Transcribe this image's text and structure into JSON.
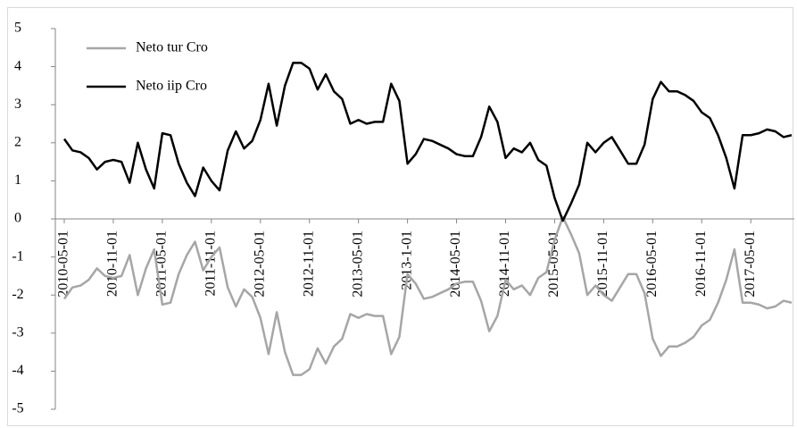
{
  "chart_data": {
    "type": "line",
    "categories": [
      "2010-05-01",
      null,
      null,
      null,
      null,
      null,
      "2010-11-01",
      null,
      null,
      null,
      null,
      null,
      "2011-05-01",
      null,
      null,
      null,
      null,
      null,
      "2011-11-01",
      null,
      null,
      null,
      null,
      null,
      "2012-05-01",
      null,
      null,
      null,
      null,
      null,
      "2012-11-01",
      null,
      null,
      null,
      null,
      null,
      "2013-05-01",
      null,
      null,
      null,
      null,
      null,
      "2013-1-01",
      null,
      null,
      null,
      null,
      null,
      "2014-05-01",
      null,
      null,
      null,
      null,
      null,
      "2014-11-01",
      null,
      null,
      null,
      null,
      null,
      "2015-05-01",
      null,
      null,
      null,
      null,
      null,
      "2015-11-01",
      null,
      null,
      null,
      null,
      null,
      "2016-05-01",
      null,
      null,
      null,
      null,
      null,
      "2016-11-01",
      null,
      null,
      null,
      null,
      null,
      "2017-05-01",
      null,
      null,
      null,
      null,
      null
    ],
    "series": [
      {
        "name": "Neto tur Cro",
        "color": "#a6a6a6",
        "values": [
          -2.1,
          -1.8,
          -1.75,
          -1.6,
          -1.3,
          -1.5,
          -1.55,
          -1.5,
          -0.95,
          -2.0,
          -1.3,
          -0.8,
          -2.25,
          -2.2,
          -1.45,
          -0.95,
          -0.6,
          -1.35,
          -1.0,
          -0.75,
          -1.8,
          -2.3,
          -1.85,
          -2.05,
          -2.6,
          -3.55,
          -2.45,
          -3.5,
          -4.1,
          -4.1,
          -3.95,
          -3.4,
          -3.8,
          -3.35,
          -3.15,
          -2.5,
          -2.6,
          -2.5,
          -2.55,
          -2.55,
          -3.55,
          -3.1,
          -1.45,
          -1.7,
          -2.1,
          -2.05,
          -1.95,
          -1.85,
          -1.7,
          -1.65,
          -1.65,
          -2.15,
          -2.95,
          -2.55,
          -1.6,
          -1.85,
          -1.75,
          -2.0,
          -1.55,
          -1.4,
          -0.55,
          0.05,
          -0.4,
          -0.9,
          -2.0,
          -1.75,
          -2.0,
          -2.15,
          -1.8,
          -1.45,
          -1.45,
          -1.95,
          -3.15,
          -3.6,
          -3.35,
          -3.35,
          -3.25,
          -3.1,
          -2.8,
          -2.65,
          -2.2,
          -1.6,
          -0.8,
          -2.2,
          -2.2,
          -2.25,
          -2.35,
          -2.3,
          -2.15,
          -2.2
        ]
      },
      {
        "name": "Neto iip Cro",
        "color": "#000000",
        "values": [
          2.1,
          1.8,
          1.75,
          1.6,
          1.3,
          1.5,
          1.55,
          1.5,
          0.95,
          2.0,
          1.3,
          0.8,
          2.25,
          2.2,
          1.45,
          0.95,
          0.6,
          1.35,
          1.0,
          0.75,
          1.8,
          2.3,
          1.85,
          2.05,
          2.6,
          3.55,
          2.45,
          3.5,
          4.1,
          4.1,
          3.95,
          3.4,
          3.8,
          3.35,
          3.15,
          2.5,
          2.6,
          2.5,
          2.55,
          2.55,
          3.55,
          3.1,
          1.45,
          1.7,
          2.1,
          2.05,
          1.95,
          1.85,
          1.7,
          1.65,
          1.65,
          2.15,
          2.95,
          2.55,
          1.6,
          1.85,
          1.75,
          2.0,
          1.55,
          1.4,
          0.55,
          -0.05,
          0.4,
          0.9,
          2.0,
          1.75,
          2.0,
          2.15,
          1.8,
          1.45,
          1.45,
          1.95,
          3.15,
          3.6,
          3.35,
          3.35,
          3.25,
          3.1,
          2.8,
          2.65,
          2.2,
          1.6,
          0.8,
          2.2,
          2.2,
          2.25,
          2.35,
          2.3,
          2.15,
          2.2
        ]
      }
    ],
    "ylim": [
      -5,
      5
    ],
    "yticks": [
      -5,
      -4,
      -3,
      -2,
      -1,
      0,
      1,
      2,
      3,
      4,
      5
    ],
    "legend": "upper left"
  }
}
